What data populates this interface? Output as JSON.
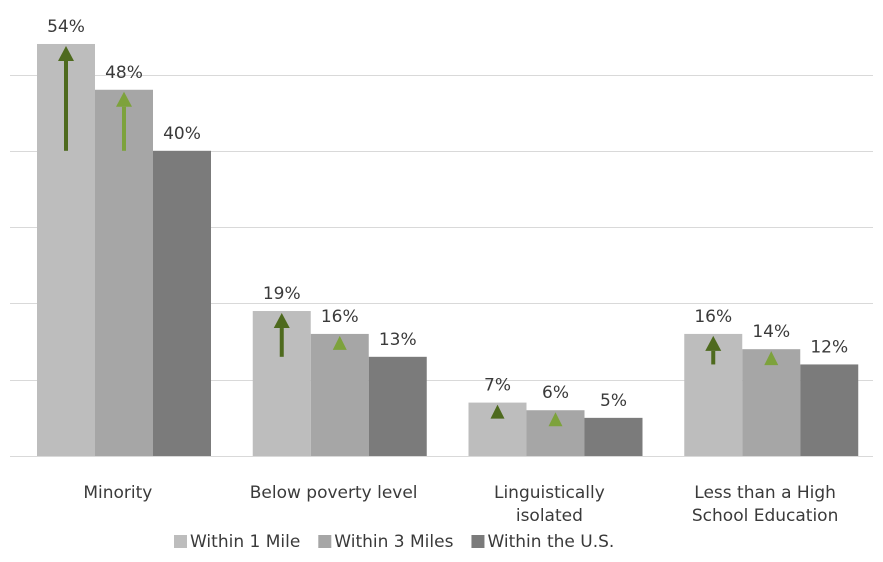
{
  "chart_data": {
    "type": "bar",
    "categories": [
      [
        "Minority"
      ],
      [
        "Below poverty level"
      ],
      [
        "Linguistically",
        "isolated"
      ],
      [
        "Less than a High",
        "School Education"
      ]
    ],
    "series": [
      {
        "name": "Within 1 Mile",
        "values": [
          54,
          19,
          7,
          16
        ],
        "labels": [
          "54%",
          "19%",
          "7%",
          "16%"
        ]
      },
      {
        "name": "Within 3 Miles",
        "values": [
          48,
          16,
          6,
          14
        ],
        "labels": [
          "48%",
          "16%",
          "6%",
          "14%"
        ]
      },
      {
        "name": "Within the U.S.",
        "values": [
          40,
          13,
          5,
          12
        ],
        "labels": [
          "40%",
          "13%",
          "5%",
          "12%"
        ]
      }
    ],
    "ylim": [
      0,
      60
    ],
    "grid": true,
    "legend_position": "bottom",
    "colors": {
      "series": [
        "#bdbdbd",
        "#a6a6a6",
        "#7b7b7b"
      ],
      "grid": "#d9d9d9",
      "arrow_dark": "#4e6a1e",
      "arrow_light": "#7da23c"
    },
    "indicators": [
      {
        "category": 0,
        "series": 0,
        "kind": "arrow",
        "color": "arrow_dark"
      },
      {
        "category": 0,
        "series": 1,
        "kind": "arrow",
        "color": "arrow_light"
      },
      {
        "category": 1,
        "series": 0,
        "kind": "arrow",
        "color": "arrow_dark"
      },
      {
        "category": 1,
        "series": 1,
        "kind": "triangle",
        "color": "arrow_light"
      },
      {
        "category": 2,
        "series": 0,
        "kind": "triangle",
        "color": "arrow_dark"
      },
      {
        "category": 2,
        "series": 1,
        "kind": "triangle",
        "color": "arrow_light"
      },
      {
        "category": 3,
        "series": 0,
        "kind": "arrow",
        "color": "arrow_dark"
      },
      {
        "category": 3,
        "series": 1,
        "kind": "triangle",
        "color": "arrow_light"
      }
    ]
  }
}
